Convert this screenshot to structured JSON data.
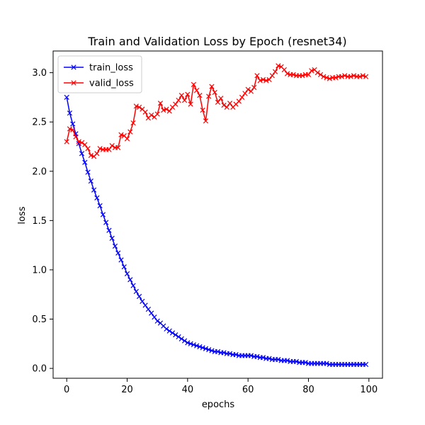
{
  "chart_data": {
    "type": "line",
    "title": "Train and Validation Loss by Epoch (resnet34)",
    "xlabel": "epochs",
    "ylabel": "loss",
    "xlim": [
      -4.5,
      104.5
    ],
    "ylim": [
      -0.1,
      3.22
    ],
    "xticks": [
      0,
      20,
      40,
      60,
      80,
      100
    ],
    "yticks": [
      0.0,
      0.5,
      1.0,
      1.5,
      2.0,
      2.5,
      3.0
    ],
    "xtick_labels": [
      "0",
      "20",
      "40",
      "60",
      "80",
      "100"
    ],
    "ytick_labels": [
      "0.0",
      "0.5",
      "1.0",
      "1.5",
      "2.0",
      "2.5",
      "3.0"
    ],
    "grid": false,
    "legend_position": "top-left",
    "marker": "x",
    "series": [
      {
        "name": "train_loss",
        "color": "#0000ff",
        "x": [
          0,
          1,
          2,
          3,
          4,
          5,
          6,
          7,
          8,
          9,
          10,
          11,
          12,
          13,
          14,
          15,
          16,
          17,
          18,
          19,
          20,
          21,
          22,
          23,
          24,
          25,
          26,
          27,
          28,
          29,
          30,
          31,
          32,
          33,
          34,
          35,
          36,
          37,
          38,
          39,
          40,
          41,
          42,
          43,
          44,
          45,
          46,
          47,
          48,
          49,
          50,
          51,
          52,
          53,
          54,
          55,
          56,
          57,
          58,
          59,
          60,
          61,
          62,
          63,
          64,
          65,
          66,
          67,
          68,
          69,
          70,
          71,
          72,
          73,
          74,
          75,
          76,
          77,
          78,
          79,
          80,
          81,
          82,
          83,
          84,
          85,
          86,
          87,
          88,
          89,
          90,
          91,
          92,
          93,
          94,
          95,
          96,
          97,
          98,
          99
        ],
        "values": [
          2.75,
          2.59,
          2.48,
          2.38,
          2.28,
          2.18,
          2.09,
          1.99,
          1.9,
          1.81,
          1.73,
          1.65,
          1.56,
          1.48,
          1.4,
          1.32,
          1.24,
          1.17,
          1.1,
          1.03,
          0.96,
          0.9,
          0.84,
          0.78,
          0.73,
          0.68,
          0.64,
          0.6,
          0.56,
          0.52,
          0.48,
          0.46,
          0.43,
          0.4,
          0.38,
          0.36,
          0.34,
          0.32,
          0.3,
          0.28,
          0.26,
          0.25,
          0.24,
          0.23,
          0.22,
          0.21,
          0.2,
          0.19,
          0.18,
          0.17,
          0.17,
          0.16,
          0.16,
          0.15,
          0.15,
          0.14,
          0.14,
          0.13,
          0.13,
          0.13,
          0.13,
          0.13,
          0.12,
          0.12,
          0.11,
          0.11,
          0.1,
          0.1,
          0.09,
          0.09,
          0.09,
          0.08,
          0.08,
          0.08,
          0.07,
          0.07,
          0.07,
          0.06,
          0.06,
          0.06,
          0.05,
          0.05,
          0.05,
          0.05,
          0.05,
          0.05,
          0.05,
          0.04,
          0.04,
          0.04,
          0.04,
          0.04,
          0.04,
          0.04,
          0.04,
          0.04,
          0.04,
          0.04,
          0.04,
          0.04
        ]
      },
      {
        "name": "valid_loss",
        "color": "#ff0000",
        "x": [
          0,
          1,
          2,
          3,
          4,
          5,
          6,
          7,
          8,
          9,
          10,
          11,
          12,
          13,
          14,
          15,
          16,
          17,
          18,
          19,
          20,
          21,
          22,
          23,
          24,
          25,
          26,
          27,
          28,
          29,
          30,
          31,
          32,
          33,
          34,
          35,
          36,
          37,
          38,
          39,
          40,
          41,
          42,
          43,
          44,
          45,
          46,
          47,
          48,
          49,
          50,
          51,
          52,
          53,
          54,
          55,
          56,
          57,
          58,
          59,
          60,
          61,
          62,
          63,
          64,
          65,
          66,
          67,
          68,
          69,
          70,
          71,
          72,
          73,
          74,
          75,
          76,
          77,
          78,
          79,
          80,
          81,
          82,
          83,
          84,
          85,
          86,
          87,
          88,
          89,
          90,
          91,
          92,
          93,
          94,
          95,
          96,
          97,
          98,
          99
        ],
        "values": [
          2.3,
          2.43,
          2.42,
          2.35,
          2.3,
          2.29,
          2.27,
          2.23,
          2.16,
          2.15,
          2.18,
          2.23,
          2.22,
          2.22,
          2.22,
          2.26,
          2.24,
          2.24,
          2.37,
          2.36,
          2.33,
          2.4,
          2.49,
          2.66,
          2.65,
          2.63,
          2.6,
          2.54,
          2.57,
          2.55,
          2.58,
          2.69,
          2.62,
          2.63,
          2.61,
          2.65,
          2.68,
          2.72,
          2.77,
          2.72,
          2.78,
          2.68,
          2.88,
          2.82,
          2.77,
          2.62,
          2.51,
          2.76,
          2.86,
          2.8,
          2.7,
          2.74,
          2.67,
          2.65,
          2.69,
          2.65,
          2.68,
          2.71,
          2.75,
          2.79,
          2.83,
          2.81,
          2.85,
          2.97,
          2.92,
          2.93,
          2.92,
          2.93,
          2.97,
          3.01,
          3.07,
          3.06,
          3.03,
          2.99,
          2.98,
          2.98,
          2.97,
          2.97,
          2.97,
          2.98,
          2.98,
          3.02,
          3.03,
          3.0,
          2.98,
          2.96,
          2.95,
          2.94,
          2.95,
          2.95,
          2.96,
          2.96,
          2.97,
          2.96,
          2.96,
          2.97,
          2.96,
          2.96,
          2.97,
          2.96
        ]
      }
    ]
  }
}
